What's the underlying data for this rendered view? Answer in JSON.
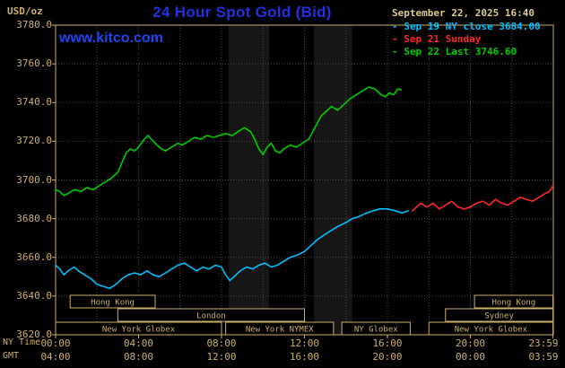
{
  "header": {
    "unit": "USD/oz",
    "title": "24 Hour Spot Gold (Bid)",
    "datetime": "September 22, 2025 16:40",
    "watermark": "www.kitco.com"
  },
  "legend": [
    {
      "label": "- Sep 19 NY close 3684.00",
      "color": "#00bfff"
    },
    {
      "label": "- Sep 21 Sunday",
      "color": "#ff2828"
    },
    {
      "label": "- Sep 22 Last 3746.60",
      "color": "#00cc00"
    }
  ],
  "axes": {
    "x_row1_label": "NY Time",
    "x_row2_label": "GMT",
    "y_tick_labels": [
      "3780.0",
      "3760.0",
      "3740.0",
      "3720.0",
      "3700.0",
      "3680.0",
      "3660.0",
      "3640.0",
      "3620.0"
    ],
    "x_tick_labels_ny": [
      "00:00",
      "04:00",
      "08:00",
      "12:00",
      "16:00",
      "20:00",
      "23:59"
    ],
    "x_tick_labels_gmt": [
      "04:00",
      "08:00",
      "12:00",
      "16:00",
      "20:00",
      "00:00",
      "03:59"
    ]
  },
  "colors": {
    "background": "#000000",
    "tan": "#c9b06a",
    "grid": "#454d45",
    "band": "#161616",
    "title_blue": "#2233dd",
    "kitco_blue": "#2244ee",
    "cyan": "#00bfff",
    "red": "#ff2828",
    "green": "#00cc00"
  },
  "chart_data": {
    "type": "line",
    "title": "24 Hour Spot Gold (Bid)",
    "ylabel": "USD/oz",
    "xlim_hours": [
      0,
      24
    ],
    "ylim": [
      3620,
      3780
    ],
    "y_ticks": [
      3780,
      3760,
      3740,
      3720,
      3700,
      3680,
      3660,
      3640,
      3620
    ],
    "x_ticks_hours": [
      0,
      4,
      8,
      12,
      16,
      20,
      23.983
    ],
    "grid_x_step_hours": 2,
    "grid_y_step": 20,
    "shaded_bands_hours": [
      [
        8.35,
        10.3
      ],
      [
        12.45,
        14.3
      ]
    ],
    "series": [
      {
        "name": "Sep 19 NY close",
        "close": 3684.0,
        "color": "#00bfff",
        "points": [
          [
            0,
            3656
          ],
          [
            0.2,
            3654
          ],
          [
            0.4,
            3651
          ],
          [
            0.6,
            3653
          ],
          [
            0.9,
            3655
          ],
          [
            1.1,
            3653
          ],
          [
            1.4,
            3651
          ],
          [
            1.7,
            3649
          ],
          [
            2,
            3646
          ],
          [
            2.3,
            3645
          ],
          [
            2.6,
            3644
          ],
          [
            2.9,
            3646
          ],
          [
            3.2,
            3649
          ],
          [
            3.5,
            3651
          ],
          [
            3.8,
            3652
          ],
          [
            4.1,
            3651
          ],
          [
            4.4,
            3653
          ],
          [
            4.7,
            3651
          ],
          [
            5,
            3650
          ],
          [
            5.3,
            3652
          ],
          [
            5.6,
            3654
          ],
          [
            5.9,
            3656
          ],
          [
            6.2,
            3657
          ],
          [
            6.5,
            3655
          ],
          [
            6.8,
            3653
          ],
          [
            7.1,
            3655
          ],
          [
            7.4,
            3654
          ],
          [
            7.7,
            3656
          ],
          [
            8,
            3655
          ],
          [
            8.2,
            3651
          ],
          [
            8.4,
            3648
          ],
          [
            8.6,
            3650
          ],
          [
            8.9,
            3653
          ],
          [
            9.2,
            3655
          ],
          [
            9.5,
            3654
          ],
          [
            9.8,
            3656
          ],
          [
            10.1,
            3657
          ],
          [
            10.4,
            3655
          ],
          [
            10.7,
            3656
          ],
          [
            11,
            3658
          ],
          [
            11.3,
            3660
          ],
          [
            11.6,
            3661
          ],
          [
            12,
            3663
          ],
          [
            12.3,
            3666
          ],
          [
            12.6,
            3669
          ],
          [
            13,
            3672
          ],
          [
            13.3,
            3674
          ],
          [
            13.6,
            3676
          ],
          [
            14,
            3678
          ],
          [
            14.3,
            3680
          ],
          [
            14.6,
            3681
          ],
          [
            15,
            3683
          ],
          [
            15.3,
            3684
          ],
          [
            15.6,
            3685
          ],
          [
            16,
            3685
          ],
          [
            16.4,
            3684
          ],
          [
            16.7,
            3683
          ],
          [
            17,
            3684
          ]
        ]
      },
      {
        "name": "Sep 21 Sunday",
        "color": "#ff2828",
        "points": [
          [
            17.2,
            3684
          ],
          [
            17.4,
            3686
          ],
          [
            17.6,
            3688
          ],
          [
            17.9,
            3686
          ],
          [
            18.2,
            3688
          ],
          [
            18.5,
            3685
          ],
          [
            18.8,
            3687
          ],
          [
            19.1,
            3689
          ],
          [
            19.4,
            3686
          ],
          [
            19.7,
            3685
          ],
          [
            20,
            3686
          ],
          [
            20.3,
            3688
          ],
          [
            20.6,
            3689
          ],
          [
            20.9,
            3687
          ],
          [
            21.2,
            3690
          ],
          [
            21.5,
            3688
          ],
          [
            21.8,
            3687
          ],
          [
            22.1,
            3689
          ],
          [
            22.4,
            3691
          ],
          [
            22.7,
            3690
          ],
          [
            23,
            3689
          ],
          [
            23.3,
            3691
          ],
          [
            23.6,
            3693
          ],
          [
            23.8,
            3694
          ],
          [
            23.98,
            3697
          ]
        ]
      },
      {
        "name": "Sep 22 Last",
        "last": 3746.6,
        "color": "#00cc00",
        "points": [
          [
            0,
            3695
          ],
          [
            0.2,
            3694
          ],
          [
            0.4,
            3692
          ],
          [
            0.6,
            3693
          ],
          [
            0.9,
            3695
          ],
          [
            1.2,
            3694
          ],
          [
            1.5,
            3696
          ],
          [
            1.8,
            3695
          ],
          [
            2.1,
            3697
          ],
          [
            2.4,
            3699
          ],
          [
            2.7,
            3701
          ],
          [
            3,
            3704
          ],
          [
            3.2,
            3709
          ],
          [
            3.4,
            3714
          ],
          [
            3.6,
            3716
          ],
          [
            3.8,
            3715
          ],
          [
            4,
            3717
          ],
          [
            4.2,
            3720
          ],
          [
            4.45,
            3723
          ],
          [
            4.7,
            3720
          ],
          [
            4.9,
            3718
          ],
          [
            5.1,
            3716
          ],
          [
            5.3,
            3715
          ],
          [
            5.6,
            3717
          ],
          [
            5.9,
            3719
          ],
          [
            6.1,
            3718
          ],
          [
            6.4,
            3720
          ],
          [
            6.7,
            3722
          ],
          [
            7,
            3721
          ],
          [
            7.3,
            3723
          ],
          [
            7.6,
            3722
          ],
          [
            7.9,
            3723
          ],
          [
            8.2,
            3724
          ],
          [
            8.5,
            3723
          ],
          [
            8.8,
            3725
          ],
          [
            9.1,
            3727
          ],
          [
            9.4,
            3725
          ],
          [
            9.6,
            3721
          ],
          [
            9.8,
            3716
          ],
          [
            10,
            3713
          ],
          [
            10.2,
            3717
          ],
          [
            10.4,
            3719
          ],
          [
            10.6,
            3715
          ],
          [
            10.8,
            3714
          ],
          [
            11,
            3716
          ],
          [
            11.3,
            3718
          ],
          [
            11.6,
            3717
          ],
          [
            11.9,
            3719
          ],
          [
            12.2,
            3721
          ],
          [
            12.5,
            3727
          ],
          [
            12.8,
            3733
          ],
          [
            13,
            3735
          ],
          [
            13.3,
            3738
          ],
          [
            13.6,
            3736
          ],
          [
            13.9,
            3739
          ],
          [
            14.2,
            3742
          ],
          [
            14.5,
            3744
          ],
          [
            14.8,
            3746
          ],
          [
            15.1,
            3748
          ],
          [
            15.4,
            3747
          ],
          [
            15.7,
            3744
          ],
          [
            15.9,
            3743
          ],
          [
            16.1,
            3745
          ],
          [
            16.3,
            3744
          ],
          [
            16.5,
            3747
          ],
          [
            16.67,
            3746.6
          ]
        ]
      }
    ],
    "sessions": [
      {
        "row": 0,
        "start": 0.7,
        "end": 4.8,
        "label": "Hong Kong"
      },
      {
        "row": 0,
        "start": 20.2,
        "end": 23.98,
        "label": "Hong Kong"
      },
      {
        "row": 1,
        "start": 3.0,
        "end": 12.0,
        "label": "London"
      },
      {
        "row": 1,
        "start": 18.8,
        "end": 23.98,
        "label": "Sydney"
      },
      {
        "row": 2,
        "start": 0.0,
        "end": 8.0,
        "label": "New York Globex"
      },
      {
        "row": 2,
        "start": 8.2,
        "end": 13.4,
        "label": "New York NYMEX"
      },
      {
        "row": 2,
        "start": 13.8,
        "end": 17.1,
        "label": "NY Globex"
      },
      {
        "row": 2,
        "start": 18.0,
        "end": 23.98,
        "label": "New York Globex"
      }
    ]
  }
}
